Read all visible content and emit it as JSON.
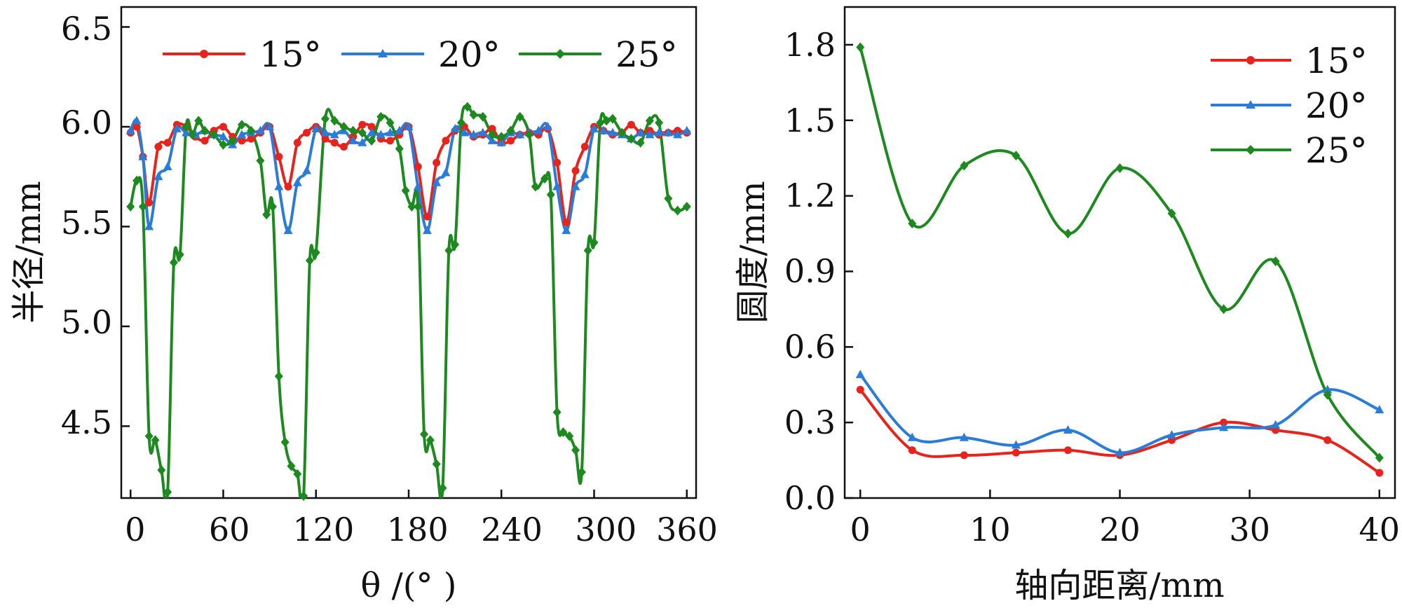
{
  "chart_data": [
    {
      "type": "line",
      "xlabel": "θ /(° )",
      "ylabel": "半径/mm",
      "xlim": [
        -6,
        366
      ],
      "ylim": [
        4.14,
        6.6
      ],
      "xticks": [
        0,
        60,
        120,
        180,
        240,
        300,
        360
      ],
      "xtick_labels": [
        "0",
        "60",
        "120",
        "180",
        "240",
        "300",
        "360"
      ],
      "yticks": [
        4.5,
        5.0,
        5.5,
        6.0,
        6.5
      ],
      "ytick_labels": [
        "4.5",
        "5.0",
        "5.5",
        "6.0",
        "6.5"
      ],
      "legend_position": "top",
      "series": [
        {
          "name": "15°",
          "label": "15°",
          "color": "#e8231c",
          "marker": "circle",
          "x": [
            0,
            4,
            8,
            12,
            18,
            24,
            30,
            36,
            42,
            48,
            54,
            60,
            66,
            72,
            78,
            84,
            90,
            96,
            102,
            108,
            114,
            120,
            126,
            132,
            138,
            144,
            150,
            156,
            162,
            168,
            174,
            180,
            186,
            192,
            198,
            204,
            210,
            216,
            222,
            228,
            234,
            240,
            246,
            252,
            258,
            264,
            270,
            276,
            282,
            288,
            294,
            300,
            306,
            312,
            318,
            324,
            330,
            336,
            342,
            348,
            354,
            360
          ],
          "values": [
            5.97,
            6.0,
            5.85,
            5.62,
            5.9,
            5.92,
            6.01,
            6.0,
            5.95,
            5.93,
            5.98,
            6.0,
            5.95,
            5.93,
            5.94,
            5.97,
            6.0,
            5.85,
            5.7,
            5.92,
            5.97,
            6.0,
            5.94,
            5.92,
            5.9,
            5.95,
            6.01,
            6.0,
            5.94,
            5.93,
            5.96,
            6.0,
            5.8,
            5.55,
            5.82,
            5.93,
            5.98,
            6.0,
            5.95,
            5.96,
            5.99,
            5.92,
            5.93,
            5.96,
            5.97,
            5.96,
            5.99,
            5.82,
            5.52,
            5.78,
            5.9,
            6.0,
            5.98,
            5.96,
            5.97,
            6.01,
            5.97,
            5.98,
            5.96,
            5.97,
            5.98,
            5.97
          ]
        },
        {
          "name": "20°",
          "label": "20°",
          "color": "#2b7cd8",
          "marker": "triangle",
          "x": [
            0,
            4,
            8,
            12,
            18,
            24,
            30,
            36,
            42,
            48,
            54,
            60,
            66,
            72,
            78,
            84,
            90,
            96,
            102,
            108,
            114,
            120,
            126,
            132,
            138,
            144,
            150,
            156,
            162,
            168,
            174,
            180,
            186,
            192,
            198,
            204,
            210,
            216,
            222,
            228,
            234,
            240,
            246,
            252,
            258,
            264,
            270,
            276,
            282,
            288,
            294,
            300,
            306,
            312,
            318,
            324,
            330,
            336,
            342,
            348,
            354,
            360
          ],
          "values": [
            5.98,
            6.03,
            5.85,
            5.5,
            5.75,
            5.8,
            5.99,
            5.97,
            5.96,
            5.98,
            5.96,
            5.95,
            5.91,
            5.96,
            5.97,
            5.98,
            6.0,
            5.7,
            5.48,
            5.72,
            5.78,
            5.99,
            5.97,
            5.96,
            5.98,
            5.93,
            5.92,
            5.97,
            5.96,
            5.97,
            5.98,
            6.0,
            5.7,
            5.48,
            5.72,
            5.77,
            5.99,
            5.97,
            5.96,
            5.97,
            5.93,
            5.92,
            5.97,
            5.96,
            5.97,
            5.98,
            6.0,
            5.7,
            5.48,
            5.7,
            5.76,
            5.99,
            5.98,
            5.97,
            5.96,
            5.94,
            5.97,
            5.96,
            5.97,
            5.97,
            5.96,
            5.98
          ]
        },
        {
          "name": "25°",
          "label": "25°",
          "color": "#1c8a1f",
          "marker": "diamond",
          "x": [
            0,
            4,
            8,
            12,
            16,
            20,
            24,
            28,
            32,
            36,
            40,
            44,
            48,
            54,
            60,
            66,
            72,
            78,
            84,
            88,
            92,
            96,
            100,
            104,
            108,
            112,
            116,
            120,
            126,
            132,
            138,
            144,
            150,
            156,
            162,
            168,
            174,
            178,
            182,
            186,
            190,
            194,
            198,
            202,
            206,
            210,
            214,
            218,
            222,
            228,
            234,
            240,
            246,
            252,
            258,
            262,
            268,
            272,
            276,
            280,
            284,
            288,
            292,
            296,
            300,
            304,
            308,
            312,
            318,
            324,
            330,
            336,
            342,
            348,
            354,
            360
          ],
          "values": [
            5.6,
            5.73,
            5.6,
            4.45,
            4.43,
            4.28,
            4.17,
            5.32,
            5.36,
            6.0,
            5.96,
            6.03,
            5.98,
            5.96,
            5.91,
            5.93,
            6.01,
            5.98,
            5.83,
            5.56,
            5.6,
            4.75,
            4.42,
            4.3,
            4.26,
            4.15,
            5.33,
            5.37,
            6.04,
            6.03,
            6.0,
            5.98,
            5.97,
            5.93,
            6.05,
            6.02,
            5.89,
            5.68,
            5.6,
            5.6,
            4.46,
            4.43,
            4.31,
            4.19,
            5.38,
            5.41,
            6.02,
            6.1,
            6.06,
            6.05,
            5.96,
            5.95,
            5.98,
            6.05,
            5.96,
            5.7,
            5.74,
            5.66,
            4.57,
            4.47,
            4.45,
            4.38,
            4.27,
            5.38,
            5.42,
            6.02,
            6.03,
            6.04,
            5.97,
            5.94,
            5.92,
            6.03,
            6.02,
            5.64,
            5.58,
            5.6
          ]
        }
      ]
    },
    {
      "type": "line",
      "xlabel": "轴向距离/mm",
      "ylabel": "圆度/mm",
      "xlim": [
        -1.2,
        41.2
      ],
      "ylim": [
        0.0,
        1.95
      ],
      "xticks": [
        0,
        10,
        20,
        30,
        40
      ],
      "xtick_labels": [
        "0",
        "10",
        "20",
        "30",
        "40"
      ],
      "yticks": [
        0.0,
        0.3,
        0.6,
        0.9,
        1.2,
        1.5,
        1.8
      ],
      "ytick_labels": [
        "0.0",
        "0.3",
        "0.6",
        "0.9",
        "1.2",
        "1.5",
        "1.8"
      ],
      "legend_position": "top-right",
      "series": [
        {
          "name": "15°",
          "label": "15°",
          "color": "#e8231c",
          "marker": "circle",
          "x": [
            0,
            4,
            8,
            12,
            16,
            20,
            24,
            28,
            32,
            36,
            40
          ],
          "values": [
            0.43,
            0.19,
            0.17,
            0.18,
            0.19,
            0.17,
            0.23,
            0.3,
            0.27,
            0.23,
            0.1
          ]
        },
        {
          "name": "20°",
          "label": "20°",
          "color": "#2b7cd8",
          "marker": "triangle",
          "x": [
            0,
            4,
            8,
            12,
            16,
            20,
            24,
            28,
            32,
            36,
            40
          ],
          "values": [
            0.49,
            0.24,
            0.24,
            0.21,
            0.27,
            0.18,
            0.25,
            0.28,
            0.29,
            0.43,
            0.35
          ]
        },
        {
          "name": "25°",
          "label": "25°",
          "color": "#1c8a1f",
          "marker": "diamond",
          "x": [
            0,
            4,
            8,
            12,
            16,
            20,
            24,
            28,
            32,
            36,
            40
          ],
          "values": [
            1.79,
            1.09,
            1.32,
            1.36,
            1.05,
            1.31,
            1.13,
            0.75,
            0.94,
            0.41,
            0.16
          ]
        }
      ]
    }
  ]
}
